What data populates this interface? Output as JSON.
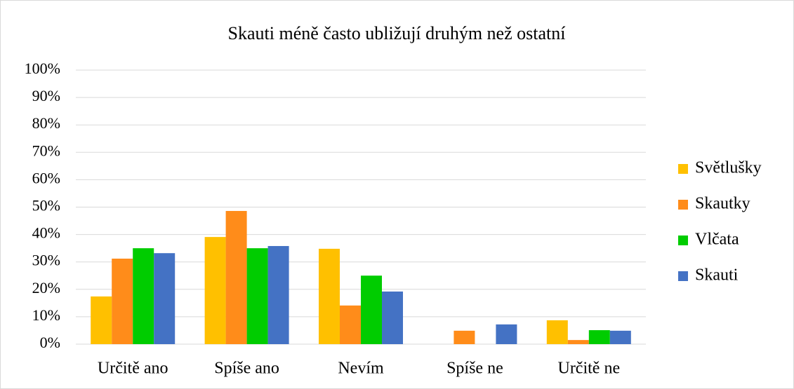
{
  "chart_data": {
    "type": "bar",
    "title": "Skauti méně často ubližují druhým než ostatní",
    "categories": [
      "Určitě ano",
      "Spíše ano",
      "Nevím",
      "Spíše ne",
      "Určitě ne"
    ],
    "series": [
      {
        "name": "Světlušky",
        "color": "#ffc000",
        "values": [
          17.4,
          39.1,
          34.8,
          0,
          8.7
        ]
      },
      {
        "name": "Skautky",
        "color": "#ff8c1a",
        "values": [
          31.2,
          48.6,
          14.1,
          4.9,
          1.5
        ]
      },
      {
        "name": "Vlčata",
        "color": "#00cc00",
        "values": [
          35,
          35,
          25,
          0,
          5.1
        ]
      },
      {
        "name": "Skauti",
        "color": "#4472c4",
        "values": [
          33.2,
          35.8,
          19.2,
          7.2,
          4.9
        ]
      }
    ],
    "ylim": [
      0,
      100
    ],
    "yticks": [
      {
        "value": 0,
        "label": "0%"
      },
      {
        "value": 10,
        "label": "10%"
      },
      {
        "value": 20,
        "label": "20%"
      },
      {
        "value": 30,
        "label": "30%"
      },
      {
        "value": 40,
        "label": "40%"
      },
      {
        "value": 50,
        "label": "50%"
      },
      {
        "value": 60,
        "label": "60%"
      },
      {
        "value": 70,
        "label": "70%"
      },
      {
        "value": 80,
        "label": "80%"
      },
      {
        "value": 90,
        "label": "90%"
      },
      {
        "value": 100,
        "label": "100%"
      }
    ],
    "grid": true,
    "legend": "right"
  }
}
